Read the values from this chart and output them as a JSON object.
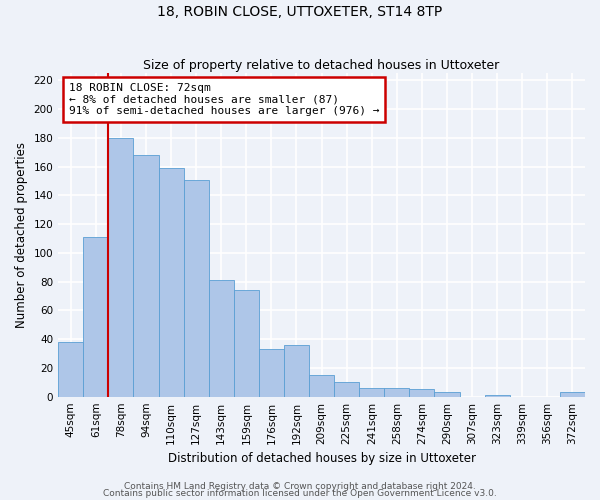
{
  "title": "18, ROBIN CLOSE, UTTOXETER, ST14 8TP",
  "subtitle": "Size of property relative to detached houses in Uttoxeter",
  "xlabel": "Distribution of detached houses by size in Uttoxeter",
  "ylabel": "Number of detached properties",
  "categories": [
    "45sqm",
    "61sqm",
    "78sqm",
    "94sqm",
    "110sqm",
    "127sqm",
    "143sqm",
    "159sqm",
    "176sqm",
    "192sqm",
    "209sqm",
    "225sqm",
    "241sqm",
    "258sqm",
    "274sqm",
    "290sqm",
    "307sqm",
    "323sqm",
    "339sqm",
    "356sqm",
    "372sqm"
  ],
  "values": [
    38,
    111,
    180,
    168,
    159,
    151,
    81,
    74,
    33,
    36,
    15,
    10,
    6,
    6,
    5,
    3,
    0,
    1,
    0,
    0,
    3
  ],
  "bar_color": "#aec6e8",
  "bar_edge_color": "#5a9fd4",
  "background_color": "#eef2f9",
  "grid_color": "#ffffff",
  "vline_color": "#cc0000",
  "annotation_title": "18 ROBIN CLOSE: 72sqm",
  "annotation_line1": "← 8% of detached houses are smaller (87)",
  "annotation_line2": "91% of semi-detached houses are larger (976) →",
  "annotation_box_color": "#ffffff",
  "annotation_box_edge_color": "#cc0000",
  "ylim": [
    0,
    225
  ],
  "yticks": [
    0,
    20,
    40,
    60,
    80,
    100,
    120,
    140,
    160,
    180,
    200,
    220
  ],
  "footer1": "Contains HM Land Registry data © Crown copyright and database right 2024.",
  "footer2": "Contains public sector information licensed under the Open Government Licence v3.0.",
  "title_fontsize": 10,
  "subtitle_fontsize": 9,
  "axis_label_fontsize": 8.5,
  "tick_fontsize": 7.5,
  "annotation_fontsize": 8,
  "footer_fontsize": 6.5
}
